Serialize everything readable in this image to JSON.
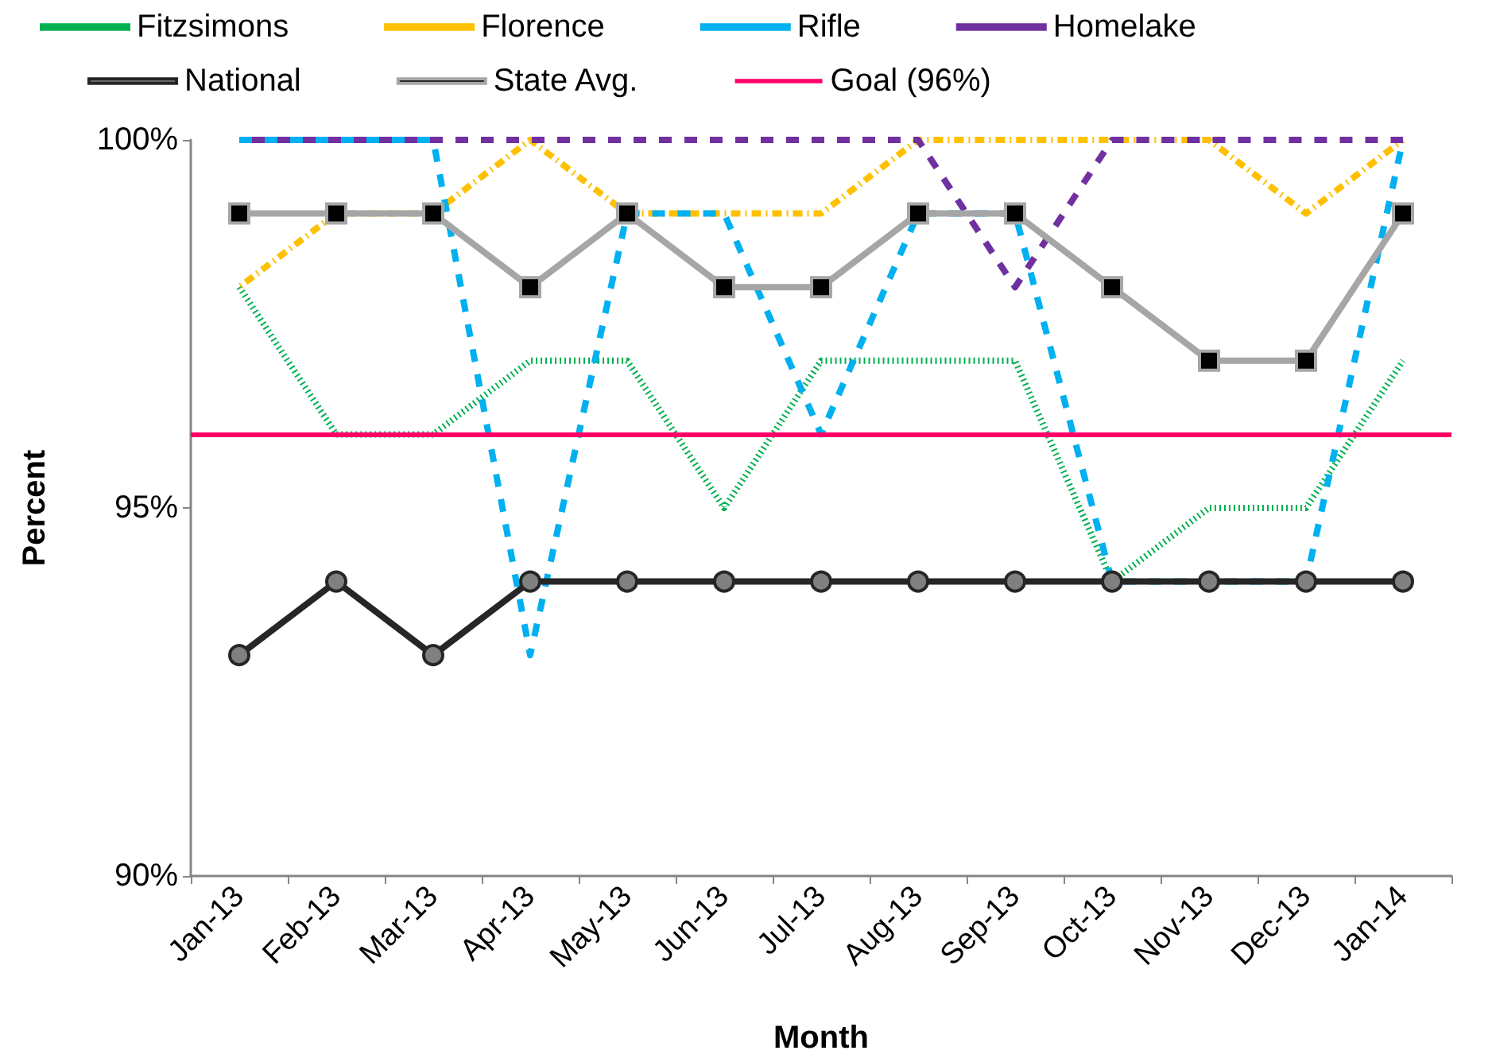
{
  "chart_data": {
    "type": "line",
    "xlabel": "Month",
    "ylabel": "Percent",
    "categories": [
      "Jan-13",
      "Feb-13",
      "Mar-13",
      "Apr-13",
      "May-13",
      "Jun-13",
      "Jul-13",
      "Aug-13",
      "Sep-13",
      "Oct-13",
      "Nov-13",
      "Dec-13",
      "Jan-14"
    ],
    "ylim": [
      90,
      100
    ],
    "yticks": [
      {
        "value": 90,
        "label": "90%"
      },
      {
        "value": 95,
        "label": "95%"
      },
      {
        "value": 100,
        "label": "100%"
      }
    ],
    "grid": false,
    "legend": "top",
    "series": [
      {
        "name": "Fitzsimons",
        "color": "#00b050",
        "line_style": "dotted",
        "marker": "none",
        "values": [
          98,
          96,
          96,
          97,
          97,
          95,
          97,
          97,
          97,
          94,
          95,
          95,
          97
        ]
      },
      {
        "name": "Florence",
        "color": "#ffc000",
        "line_style": "dashdot",
        "marker": "none",
        "values": [
          98,
          99,
          99,
          100,
          99,
          99,
          99,
          100,
          100,
          100,
          100,
          99,
          100
        ]
      },
      {
        "name": "Rifle",
        "color": "#00b0f0",
        "line_style": "dashed",
        "marker": "none",
        "values": [
          100,
          100,
          100,
          93,
          99,
          99,
          96,
          99,
          99,
          94,
          94,
          94,
          100
        ]
      },
      {
        "name": "Homelake",
        "color": "#7030a0",
        "line_style": "dashed",
        "marker": "none",
        "values": [
          100,
          100,
          100,
          100,
          100,
          100,
          100,
          100,
          98,
          100,
          100,
          100,
          100
        ]
      },
      {
        "name": "National",
        "color": "#262626",
        "line_style": "solid",
        "marker": "circle",
        "values": [
          93,
          94,
          93,
          94,
          94,
          94,
          94,
          94,
          94,
          94,
          94,
          94,
          94
        ]
      },
      {
        "name": "State Avg.",
        "color": "#a6a6a6",
        "line_style": "solid",
        "marker": "square",
        "values": [
          99,
          99,
          99,
          98,
          99,
          98,
          98,
          99,
          99,
          98,
          97,
          97,
          99
        ]
      }
    ],
    "ref_lines": [
      {
        "axis": "y",
        "value": 96,
        "label": "Goal (96%)",
        "color": "#ff0066"
      }
    ]
  }
}
